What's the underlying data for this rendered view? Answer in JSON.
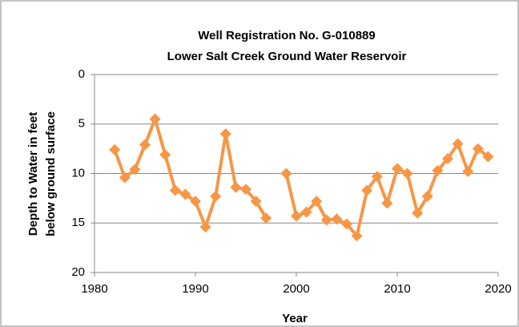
{
  "chart_data": {
    "type": "line",
    "title": [
      "Well Registration No. G-010889",
      "Lower Salt Creek Ground  Water Reservoir"
    ],
    "xlabel": "Year",
    "ylabel": [
      "Depth to Water in feet",
      "below ground surface"
    ],
    "x": [
      1982,
      1983,
      1984,
      1985,
      1986,
      1987,
      1988,
      1989,
      1990,
      1991,
      1992,
      1993,
      1994,
      1995,
      1996,
      1997,
      1998,
      1999,
      2000,
      2001,
      2002,
      2003,
      2004,
      2005,
      2006,
      2007,
      2008,
      2009,
      2010,
      2011,
      2012,
      2013,
      2014,
      2015,
      2016,
      2017,
      2018,
      2019
    ],
    "values": [
      7.6,
      10.4,
      9.6,
      7.1,
      4.5,
      8.1,
      11.7,
      12.1,
      12.8,
      15.4,
      12.3,
      6.0,
      11.4,
      11.6,
      12.8,
      14.5,
      null,
      10.0,
      14.3,
      13.9,
      12.8,
      14.7,
      14.6,
      15.1,
      16.3,
      11.7,
      10.3,
      13.0,
      9.5,
      10.0,
      14.0,
      12.3,
      9.7,
      8.5,
      7.0,
      9.8,
      7.5,
      8.3
    ],
    "color": "#f79646",
    "marker": "diamond",
    "xlim": [
      1980,
      2020
    ],
    "xticks": [
      1980,
      1990,
      2000,
      2010,
      2020
    ],
    "ylim": [
      0,
      20
    ],
    "yticks": [
      0,
      5,
      10,
      15,
      20
    ],
    "y_inverted": true,
    "grid": true
  }
}
